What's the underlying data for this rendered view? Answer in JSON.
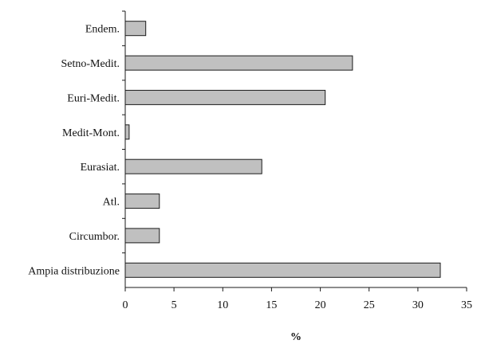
{
  "chart_data": {
    "type": "bar",
    "orientation": "horizontal",
    "categories": [
      "Endem.",
      "Setno-Medit.",
      "Euri-Medit.",
      "Medit-Mont.",
      "Eurasiat.",
      "Atl.",
      "Circumbor.",
      "Ampia distribuzione"
    ],
    "values": [
      2.1,
      23.3,
      20.5,
      0.4,
      14.0,
      3.5,
      3.5,
      32.3
    ],
    "xlabel": "%",
    "ylabel": "",
    "xlim": [
      0,
      35
    ],
    "xticks": [
      "0",
      "5",
      "10",
      "15",
      "20",
      "25",
      "30",
      "35"
    ],
    "grid": false,
    "legend": "none",
    "colors": {
      "bar_fill": "#c0c0c0",
      "bar_stroke": "#1a1a1a",
      "axis": "#1a1a1a"
    }
  }
}
